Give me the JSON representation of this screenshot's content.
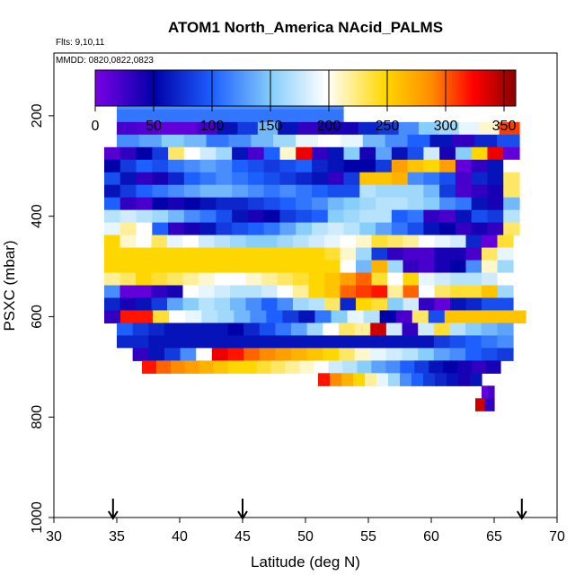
{
  "chart_data": {
    "type": "heatmap",
    "title": "ATOM1 North_America NAcid_PALMS",
    "annotations": [
      "Flts: 9,10,11",
      "MMDD: 0820,0822,0823"
    ],
    "xlabel": "Latitude (deg N)",
    "ylabel": "PSXC (mbar)",
    "xlim": [
      30,
      70
    ],
    "ylim": [
      1000,
      75
    ],
    "y_reversed": true,
    "x_ticks": [
      30,
      35,
      40,
      45,
      50,
      55,
      60,
      65,
      70
    ],
    "y_ticks": [
      200,
      400,
      600,
      800,
      1000
    ],
    "colorbar": {
      "range": [
        0,
        360
      ],
      "ticks": [
        0,
        50,
        100,
        150,
        200,
        250,
        300,
        350
      ],
      "stops": [
        "#7a00e6",
        "#0000a8",
        "#1e90ff",
        "#ffffff",
        "#ffd700",
        "#ff8c00",
        "#ff0000",
        "#8b0000"
      ]
    },
    "arrows_at_latitude": [
      34.7,
      45,
      67.2
    ],
    "rows": [
      {
        "p": 175,
        "x0": 35,
        "x1": 53,
        "v": 120
      },
      {
        "p": 200,
        "x0": 35,
        "x1": 53,
        "v": 110
      },
      {
        "p": 225,
        "x0": 35,
        "x1": 67,
        "v": [
          20,
          15,
          10,
          10,
          20,
          60,
          80,
          140,
          60,
          30,
          40,
          40,
          70,
          80,
          120,
          150,
          160,
          190,
          210,
          310
        ]
      },
      {
        "p": 250,
        "x0": 35,
        "x1": 67,
        "v": [
          120,
          130,
          150,
          140,
          110,
          120,
          140,
          160,
          190,
          200,
          190,
          140,
          120,
          100,
          60,
          30,
          70,
          90
        ]
      },
      {
        "p": 275,
        "x0": 34,
        "x1": 67,
        "v": [
          15,
          30,
          50,
          80,
          230,
          200,
          180,
          160,
          60,
          20,
          100,
          210,
          330,
          30,
          60,
          150,
          40,
          130,
          60,
          90,
          180,
          40,
          150,
          250,
          330,
          10
        ]
      },
      {
        "p": 300,
        "x0": 34,
        "x1": 67,
        "v": [
          50,
          80,
          100,
          90,
          110,
          120,
          130,
          120,
          100,
          90,
          80,
          90,
          100,
          70,
          60,
          50,
          50,
          80,
          280,
          260,
          250,
          280,
          10,
          30,
          60,
          200
        ]
      },
      {
        "p": 325,
        "x0": 34,
        "x1": 67,
        "v": [
          90,
          60,
          30,
          40,
          70,
          100,
          110,
          120,
          110,
          100,
          90,
          80,
          70,
          60,
          30,
          80,
          260,
          260,
          270,
          120,
          110,
          90,
          20,
          70,
          60,
          230
        ]
      },
      {
        "p": 350,
        "x0": 34,
        "x1": 67,
        "v": [
          60,
          80,
          100,
          110,
          120,
          130,
          140,
          140,
          130,
          120,
          110,
          120,
          110,
          100,
          90,
          90,
          170,
          160,
          160,
          160,
          140,
          80,
          20,
          30,
          40,
          230
        ]
      },
      {
        "p": 375,
        "x0": 34,
        "x1": 67,
        "v": [
          100,
          30,
          20,
          50,
          40,
          50,
          60,
          70,
          70,
          80,
          90,
          100,
          110,
          120,
          140,
          150,
          160,
          170,
          170,
          160,
          150,
          120,
          110,
          60,
          40,
          140
        ]
      },
      {
        "p": 400,
        "x0": 34,
        "x1": 67,
        "v": [
          170,
          180,
          170,
          160,
          140,
          120,
          110,
          90,
          60,
          40,
          50,
          80,
          90,
          100,
          150,
          160,
          170,
          170,
          100,
          110,
          30,
          20,
          60,
          90,
          80,
          170
        ]
      },
      {
        "p": 425,
        "x0": 34,
        "x1": 67,
        "v": [
          190,
          220,
          200,
          100,
          30,
          40,
          60,
          80,
          90,
          100,
          110,
          130,
          150,
          170,
          180,
          170,
          150,
          130,
          110,
          90,
          60,
          50,
          30,
          40,
          30,
          230
        ]
      },
      {
        "p": 450,
        "x0": 34,
        "x1": 66.5,
        "v": [
          250,
          210,
          200,
          230,
          190,
          200,
          180,
          170,
          160,
          150,
          150,
          160,
          170,
          180,
          190,
          200,
          210,
          240,
          230,
          220,
          200,
          190,
          180,
          70,
          10,
          240
        ]
      },
      {
        "p": 475,
        "x0": 34,
        "x1": 66.5,
        "v": [
          250,
          250,
          250,
          250,
          250,
          250,
          250,
          250,
          250,
          250,
          250,
          250,
          250,
          250,
          240,
          210,
          160,
          80,
          30,
          20,
          20,
          40,
          40,
          20,
          230,
          190
        ]
      },
      {
        "p": 500,
        "x0": 34,
        "x1": 66.5,
        "v": [
          250,
          250,
          250,
          250,
          250,
          250,
          250,
          250,
          250,
          250,
          250,
          250,
          250,
          250,
          250,
          200,
          140,
          270,
          160,
          30,
          20,
          40,
          50,
          120,
          210,
          160
        ]
      },
      {
        "p": 525,
        "x0": 34,
        "x1": 66.5,
        "v": [
          220,
          230,
          250,
          240,
          230,
          220,
          210,
          200,
          200,
          210,
          220,
          230,
          240,
          250,
          260,
          280,
          300,
          240,
          200,
          250,
          190,
          180,
          170,
          170,
          180,
          200
        ]
      },
      {
        "p": 550,
        "x0": 34,
        "x1": 66.5,
        "v": [
          120,
          10,
          10,
          30,
          40,
          200,
          190,
          180,
          170,
          170,
          180,
          200,
          220,
          250,
          260,
          300,
          310,
          320,
          220,
          300,
          200,
          230,
          240,
          240,
          260,
          160
        ]
      },
      {
        "p": 575,
        "x0": 34,
        "x1": 66.5,
        "v": [
          70,
          40,
          60,
          80,
          130,
          150,
          170,
          160,
          140,
          120,
          100,
          120,
          160,
          170,
          230,
          70,
          250,
          240,
          150,
          180,
          30,
          10,
          60,
          70,
          90,
          90
        ]
      },
      {
        "p": 600,
        "x0": 34,
        "x1": 67.5,
        "v": [
          30,
          320,
          320,
          240,
          200,
          190,
          170,
          160,
          140,
          120,
          100,
          80,
          60,
          110,
          150,
          190,
          170,
          50,
          20,
          230,
          90,
          260,
          260,
          260,
          260,
          260
        ]
      },
      {
        "p": 625,
        "x0": 35,
        "x1": 66.5,
        "v": [
          100,
          80,
          70,
          60,
          60,
          60,
          60,
          50,
          70,
          90,
          110,
          130,
          160,
          200,
          230,
          220,
          340,
          180,
          30,
          180,
          240,
          170,
          150,
          140,
          130
        ]
      },
      {
        "p": 650,
        "x0": 35,
        "x1": 66.5,
        "v": [
          70,
          70,
          60,
          60,
          60,
          60,
          60,
          60,
          60,
          60,
          60,
          60,
          60,
          60,
          60,
          60,
          60,
          60,
          60,
          60,
          80,
          90,
          100,
          110,
          120
        ]
      },
      {
        "p": 675,
        "x0": 35,
        "x1": 66.5,
        "v": [
          200,
          30,
          60,
          80,
          120,
          200,
          330,
          320,
          300,
          290,
          280,
          270,
          260,
          250,
          230,
          210,
          190,
          180,
          170,
          150,
          130,
          120,
          100,
          90,
          80
        ]
      },
      {
        "p": 700,
        "x0": 37,
        "x1": 65.5,
        "v": [
          320,
          300,
          290,
          280,
          270,
          260,
          250,
          250,
          240,
          230,
          220,
          210,
          200,
          180,
          170,
          150,
          130,
          120,
          100,
          80,
          60,
          50,
          40,
          30,
          40
        ]
      },
      {
        "p": 725,
        "x0": 51,
        "x1": 64,
        "v": [
          320,
          290,
          270,
          250,
          220,
          190,
          160,
          120,
          100,
          80,
          70,
          60,
          40,
          60
        ]
      },
      {
        "p": 750,
        "x0": 64,
        "x1": 65,
        "v": [
          10,
          20
        ]
      },
      {
        "p": 775,
        "x0": 63.5,
        "x1": 65,
        "v": [
          340,
          30
        ]
      }
    ]
  }
}
